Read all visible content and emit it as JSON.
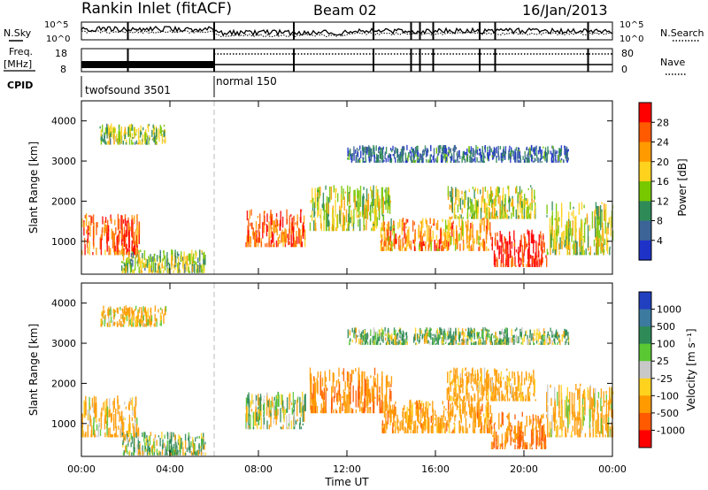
{
  "header": {
    "station": "Rankin Inlet (fitACF)",
    "beam": "Beam 02",
    "date": "16/Jan/2013"
  },
  "top_panels": {
    "nsky_label": "N.Sky",
    "nsearch_label": "N.Search",
    "freq_label": "Freq.",
    "freq_unit": "[MHz]",
    "nave_label": "Nave",
    "cpid_label": "CPID",
    "left_ticks_noise": [
      "10^5",
      "10^0"
    ],
    "right_ticks_noise": [
      "10^5",
      "10^0"
    ],
    "left_ticks_freq": [
      "18",
      "8"
    ],
    "right_ticks_nave": [
      "80",
      "0"
    ],
    "cpid_modes": [
      {
        "name": "twofsound 3501",
        "start_hour": 0
      },
      {
        "name": "normal 150",
        "start_hour": 6
      }
    ],
    "sounding_times_hours": [
      2.1,
      6.0,
      9.6,
      13.2,
      14.9,
      15.3,
      15.9,
      18.0,
      18.7,
      22.9
    ]
  },
  "power_panel": {
    "ylabel": "Slant Range [km]",
    "cbar_label": "Power [dB]",
    "cbar_ticks": [
      "28",
      "24",
      "20",
      "16",
      "12",
      "8",
      "4"
    ],
    "cbar_colors": [
      "#ff0000",
      "#ff5a00",
      "#ff9a00",
      "#ffd21e",
      "#78c800",
      "#2e8b57",
      "#3c6496",
      "#1e32c8"
    ]
  },
  "velocity_panel": {
    "ylabel": "Slant Range [km]",
    "cbar_label": "Velocity [m s⁻¹]",
    "cbar_ticks": [
      "1000",
      "500",
      "100",
      "25",
      "-25",
      "-100",
      "-500",
      "-1000"
    ],
    "cbar_colors": [
      "#2040c0",
      "#3c7aa0",
      "#2e8b57",
      "#5ac832",
      "#c8c8c8",
      "#ffd21e",
      "#ff9a00",
      "#ff5a00",
      "#ff0000"
    ]
  },
  "chart_data": {
    "type": "heatmap",
    "title": "Rankin Inlet (fitACF)",
    "xlabel": "Time UT",
    "ylabel": "Slant Range [km]",
    "x_ticks": [
      "00:00",
      "04:00",
      "08:00",
      "12:00",
      "16:00",
      "20:00",
      "00:00"
    ],
    "y_ticks": [
      "1000",
      "2000",
      "3000",
      "4000"
    ],
    "xlim_hours": [
      0,
      24
    ],
    "ylim_km": [
      180,
      4500
    ],
    "mode_change_hour": 6,
    "echo_regions": [
      {
        "t0": 0.0,
        "t1": 2.6,
        "r0": 700,
        "r1": 1700,
        "power_db": 26,
        "velocity": -200
      },
      {
        "t0": 1.8,
        "t1": 5.6,
        "r0": 250,
        "r1": 800,
        "power_db": 14,
        "velocity": 80
      },
      {
        "t0": 0.8,
        "t1": 3.8,
        "r0": 3450,
        "r1": 3950,
        "power_db": 14,
        "velocity": -150
      },
      {
        "t0": 7.4,
        "t1": 10.1,
        "r0": 900,
        "r1": 1800,
        "power_db": 26,
        "velocity": 60
      },
      {
        "t0": 10.3,
        "t1": 14.0,
        "r0": 1300,
        "r1": 2400,
        "power_db": 16,
        "velocity": -400
      },
      {
        "t0": 13.5,
        "t1": 18.5,
        "r0": 800,
        "r1": 1600,
        "power_db": 22,
        "velocity": -300
      },
      {
        "t0": 16.5,
        "t1": 20.5,
        "r0": 1600,
        "r1": 2400,
        "power_db": 16,
        "velocity": -250
      },
      {
        "t0": 18.5,
        "t1": 21.0,
        "r0": 400,
        "r1": 1300,
        "power_db": 30,
        "velocity": -500
      },
      {
        "t0": 21.0,
        "t1": 24.0,
        "r0": 700,
        "r1": 2000,
        "power_db": 16,
        "velocity": -150
      },
      {
        "t0": 12.0,
        "t1": 22.0,
        "r0": 3000,
        "r1": 3400,
        "power_db": 6,
        "velocity": 100
      }
    ]
  }
}
